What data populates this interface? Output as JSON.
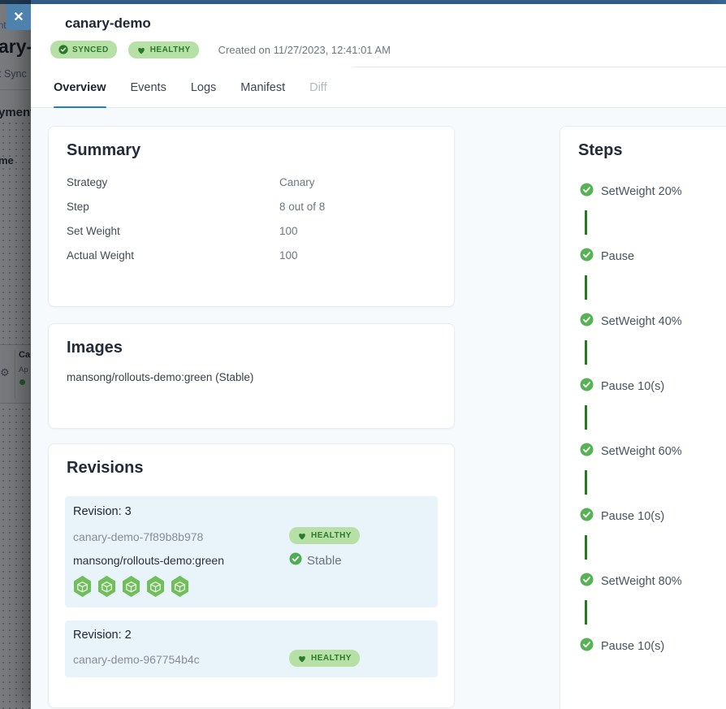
{
  "backdrop": {
    "link_fragment": "nt:soft",
    "title_fragment": "ary-",
    "sync_fragment": "t Sync",
    "deployment_fragment": "yment",
    "name_fragment": "me",
    "card_fragment_line1": "Ca",
    "card_fragment_line2": "Ap",
    "gear_glyph": "⚙",
    "close_label": "✕"
  },
  "header": {
    "title": "canary-demo",
    "created": "Created on 11/27/2023, 12:41:01 AM",
    "badges": [
      {
        "label": "SYNCED",
        "icon": "check-circle-icon"
      },
      {
        "label": "HEALTHY",
        "icon": "heart-icon"
      }
    ]
  },
  "tabs": [
    {
      "label": "Overview",
      "state": "active"
    },
    {
      "label": "Events",
      "state": "normal"
    },
    {
      "label": "Logs",
      "state": "normal"
    },
    {
      "label": "Manifest",
      "state": "normal"
    },
    {
      "label": "Diff",
      "state": "disabled"
    }
  ],
  "summary": {
    "title": "Summary",
    "rows": [
      {
        "label": "Strategy",
        "value": "Canary"
      },
      {
        "label": "Step",
        "value": "8 out of 8"
      },
      {
        "label": "Set Weight",
        "value": "100"
      },
      {
        "label": "Actual Weight",
        "value": "100"
      }
    ]
  },
  "images": {
    "title": "Images",
    "items": [
      "mansong/rollouts-demo:green (Stable)"
    ]
  },
  "revisions": {
    "title": "Revisions",
    "items": [
      {
        "name": "Revision: 3",
        "replicaset": "canary-demo-7f89b8b978",
        "badge": "HEALTHY",
        "image": "mansong/rollouts-demo:green",
        "image_status": "Stable",
        "pod_count": 5
      },
      {
        "name": "Revision: 2",
        "replicaset": "canary-demo-967754b4c",
        "badge": "HEALTHY"
      }
    ]
  },
  "steps": {
    "title": "Steps",
    "items": [
      "SetWeight 20%",
      "Pause",
      "SetWeight 40%",
      "Pause 10(s)",
      "SetWeight 60%",
      "Pause 10(s)",
      "SetWeight 80%",
      "Pause 10(s)"
    ]
  },
  "colors": {
    "accent_blue": "#1d7ed2",
    "topbar_blue": "#38699c",
    "badge_bg_green": "#b7e0a6",
    "badge_text_green": "#2a7a2b",
    "step_check_green": "#56b255",
    "connector_green": "#27791f",
    "pod_green": "#70bf5b",
    "content_bg": "#f7fafd",
    "revision_bg": "#e9f3fa"
  }
}
